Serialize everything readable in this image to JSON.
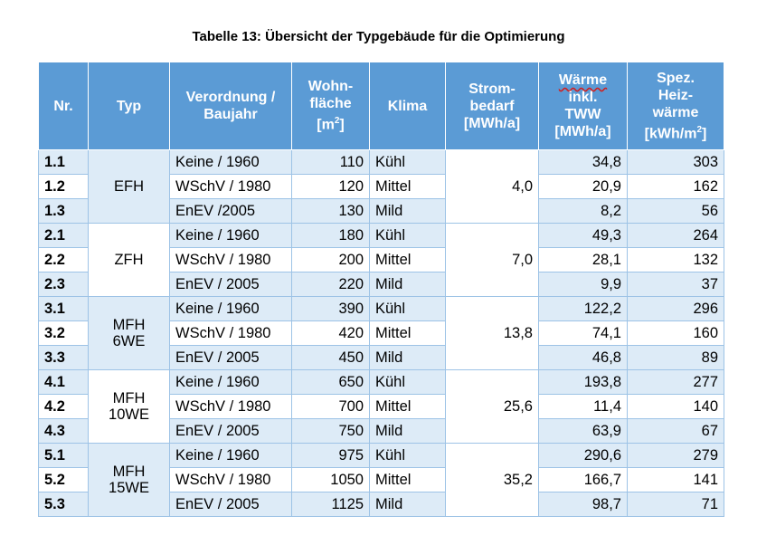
{
  "caption": "Tabelle 13: Übersicht der Typgebäude für die Optimierung",
  "headers": {
    "nr": "Nr.",
    "typ": "Typ",
    "verordnung": [
      "Verordnung /",
      "Baujahr"
    ],
    "wohnflaeche": [
      "Wohn-",
      "fläche",
      "[m",
      "2",
      "]"
    ],
    "klima": "Klima",
    "strom": [
      "Strom-",
      "bedarf",
      "[MWh/a]"
    ],
    "waerme": [
      "Wärme",
      "inkl.",
      "TWW",
      "[MWh/a]"
    ],
    "spez": [
      "Spez.",
      "Heiz-",
      "wärme",
      "[kWh/m",
      "2",
      "]"
    ]
  },
  "groups": [
    {
      "typ": [
        "EFH"
      ],
      "strom": "4,0",
      "rows": [
        {
          "nr": "1.1",
          "verordnung": "Keine / 1960",
          "flaeche": "110",
          "klima": "Kühl",
          "waerme": "34,8",
          "spez": "303"
        },
        {
          "nr": "1.2",
          "verordnung": "WSchV / 1980",
          "flaeche": "120",
          "klima": "Mittel",
          "waerme": "20,9",
          "spez": "162"
        },
        {
          "nr": "1.3",
          "verordnung": "EnEV /2005",
          "flaeche": "130",
          "klima": "Mild",
          "waerme": "8,2",
          "spez": "56"
        }
      ]
    },
    {
      "typ": [
        "ZFH"
      ],
      "strom": "7,0",
      "rows": [
        {
          "nr": "2.1",
          "verordnung": "Keine / 1960",
          "flaeche": "180",
          "klima": "Kühl",
          "waerme": "49,3",
          "spez": "264"
        },
        {
          "nr": "2.2",
          "verordnung": "WSchV / 1980",
          "flaeche": "200",
          "klima": "Mittel",
          "waerme": "28,1",
          "spez": "132"
        },
        {
          "nr": "2.3",
          "verordnung": "EnEV / 2005",
          "flaeche": "220",
          "klima": "Mild",
          "waerme": "9,9",
          "spez": "37"
        }
      ]
    },
    {
      "typ": [
        "MFH",
        "6WE"
      ],
      "strom": "13,8",
      "rows": [
        {
          "nr": "3.1",
          "verordnung": "Keine / 1960",
          "flaeche": "390",
          "klima": "Kühl",
          "waerme": "122,2",
          "spez": "296"
        },
        {
          "nr": "3.2",
          "verordnung": "WSchV / 1980",
          "flaeche": "420",
          "klima": "Mittel",
          "waerme": "74,1",
          "spez": "160"
        },
        {
          "nr": "3.3",
          "verordnung": "EnEV / 2005",
          "flaeche": "450",
          "klima": "Mild",
          "waerme": "46,8",
          "spez": "89"
        }
      ]
    },
    {
      "typ": [
        "MFH",
        "10WE"
      ],
      "strom": "25,6",
      "rows": [
        {
          "nr": "4.1",
          "verordnung": "Keine / 1960",
          "flaeche": "650",
          "klima": "Kühl",
          "waerme": "193,8",
          "spez": "277"
        },
        {
          "nr": "4.2",
          "verordnung": "WSchV / 1980",
          "flaeche": "700",
          "klima": "Mittel",
          "waerme": "11,4",
          "spez": "140"
        },
        {
          "nr": "4.3",
          "verordnung": "EnEV / 2005",
          "flaeche": "750",
          "klima": "Mild",
          "waerme": "63,9",
          "spez": "67"
        }
      ]
    },
    {
      "typ": [
        "MFH",
        "15WE"
      ],
      "strom": "35,2",
      "rows": [
        {
          "nr": "5.1",
          "verordnung": "Keine / 1960",
          "flaeche": "975",
          "klima": "Kühl",
          "waerme": "290,6",
          "spez": "279"
        },
        {
          "nr": "5.2",
          "verordnung": "WSchV / 1980",
          "flaeche": "1050",
          "klima": "Mittel",
          "waerme": "166,7",
          "spez": "141"
        },
        {
          "nr": "5.3",
          "verordnung": "EnEV / 2005",
          "flaeche": "1125",
          "klima": "Mild",
          "waerme": "98,7",
          "spez": "71"
        }
      ]
    }
  ]
}
